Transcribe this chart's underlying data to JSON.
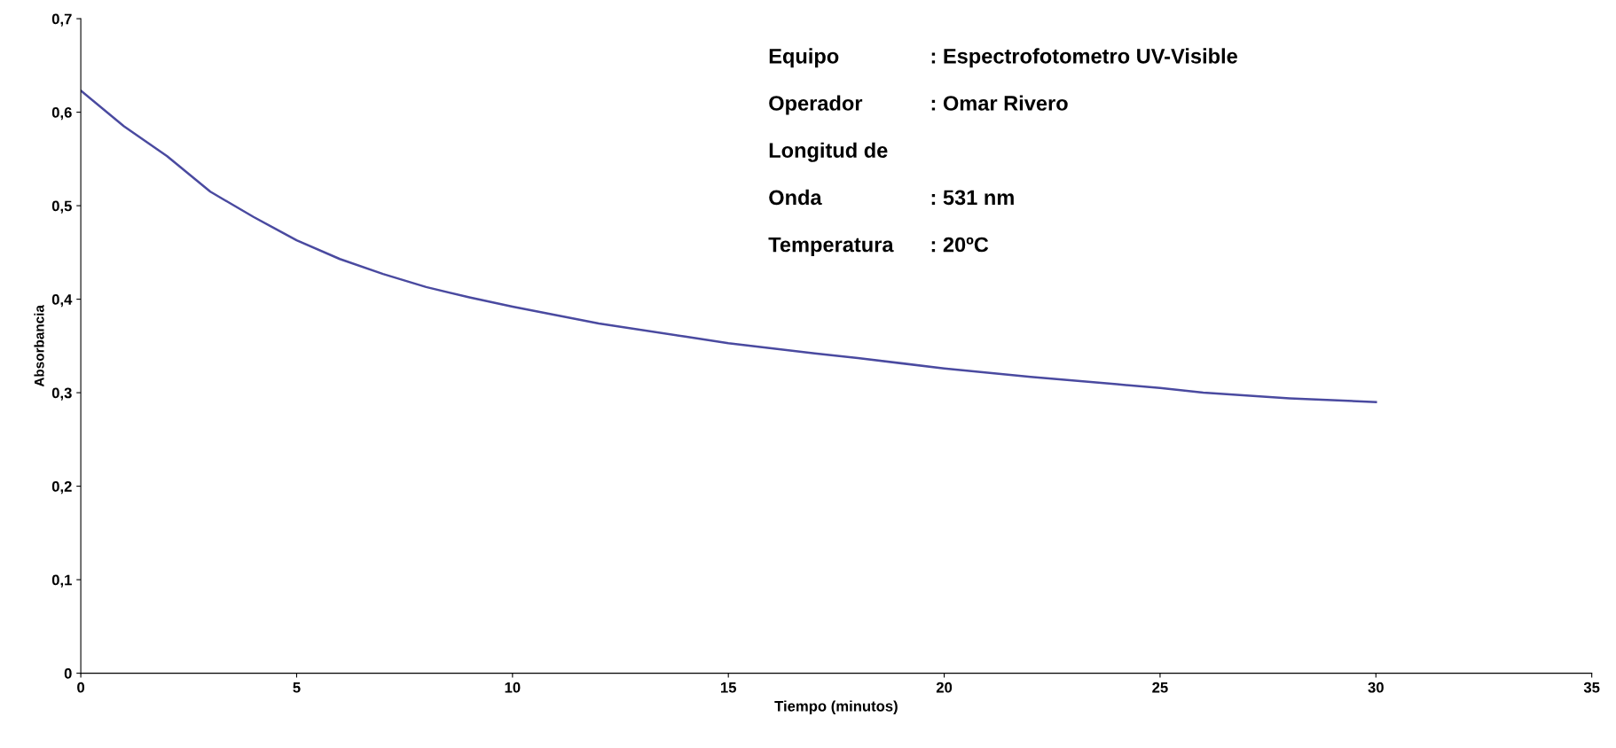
{
  "chart_data": {
    "type": "line",
    "xlabel": "Tiempo (minutos)",
    "ylabel": "Absorbancia",
    "x": [
      0,
      1,
      2,
      3,
      4,
      5,
      6,
      7,
      8,
      9,
      10,
      12,
      14,
      15,
      17,
      18,
      20,
      22,
      24,
      25,
      26,
      28,
      30
    ],
    "series": [
      {
        "color": "#4a4aa0",
        "values": [
          0.623,
          0.585,
          0.553,
          0.515,
          0.488,
          0.463,
          0.443,
          0.427,
          0.413,
          0.402,
          0.392,
          0.374,
          0.36,
          0.353,
          0.342,
          0.337,
          0.326,
          0.317,
          0.309,
          0.305,
          0.3,
          0.294,
          0.29
        ]
      }
    ],
    "xlim": [
      0,
      35
    ],
    "xticks": [
      0,
      5,
      10,
      15,
      20,
      25,
      30,
      35
    ],
    "ylim": [
      0,
      0.7
    ],
    "yticks": [
      {
        "value": 0,
        "label": "0"
      },
      {
        "value": 0.1,
        "label": "0,1"
      },
      {
        "value": 0.2,
        "label": "0,2"
      },
      {
        "value": 0.3,
        "label": "0,3"
      },
      {
        "value": 0.4,
        "label": "0,4"
      },
      {
        "value": 0.5,
        "label": "0,5"
      },
      {
        "value": 0.6,
        "label": "0,6"
      },
      {
        "value": 0.7,
        "label": "0,7"
      }
    ],
    "grid": false,
    "legend": false,
    "marker": "none",
    "line_style": "solid",
    "annotations": [
      "Equipo\t: Espectrofotometro UV-Visible",
      "Operador\t: Omar Rivero",
      "Longitud de",
      "Onda\t: 531 nm",
      "Temperatura\t: 20ºC"
    ]
  }
}
